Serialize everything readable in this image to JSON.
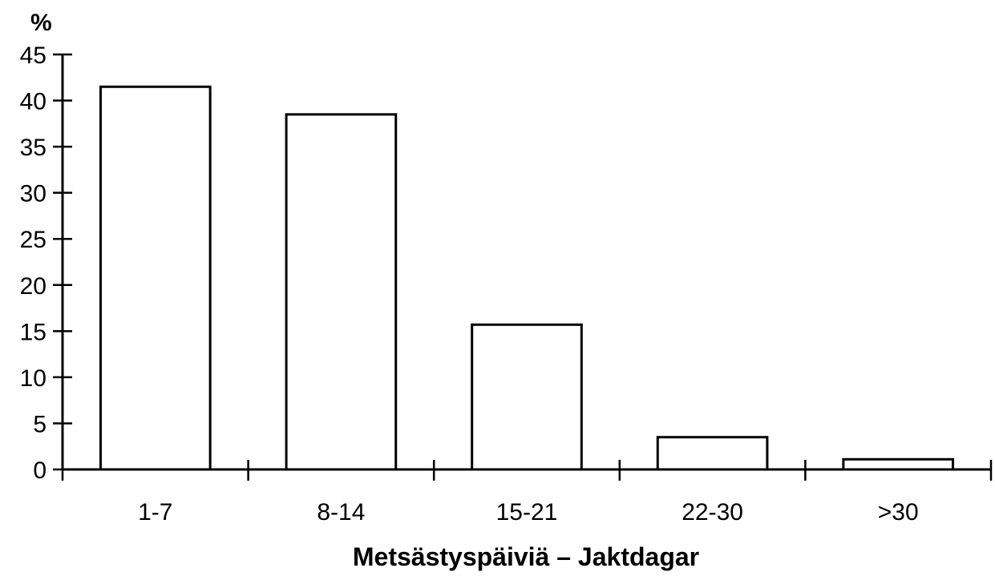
{
  "chart_data": {
    "type": "bar",
    "categories": [
      "1-7",
      "8-14",
      "15-21",
      "22-30",
      ">30"
    ],
    "values": [
      41.5,
      38.5,
      15.7,
      3.5,
      1.1
    ],
    "ylabel": "%",
    "xlabel": "Metsästyspäiviä – Jaktdagar",
    "ylim": [
      0,
      45
    ],
    "yticks": [
      0,
      5,
      10,
      15,
      20,
      25,
      30,
      35,
      40,
      45
    ],
    "grid": false,
    "legend": "none",
    "colors": {
      "bar_fill": "#ffffff",
      "bar_stroke": "#000000",
      "axis": "#000000"
    }
  }
}
